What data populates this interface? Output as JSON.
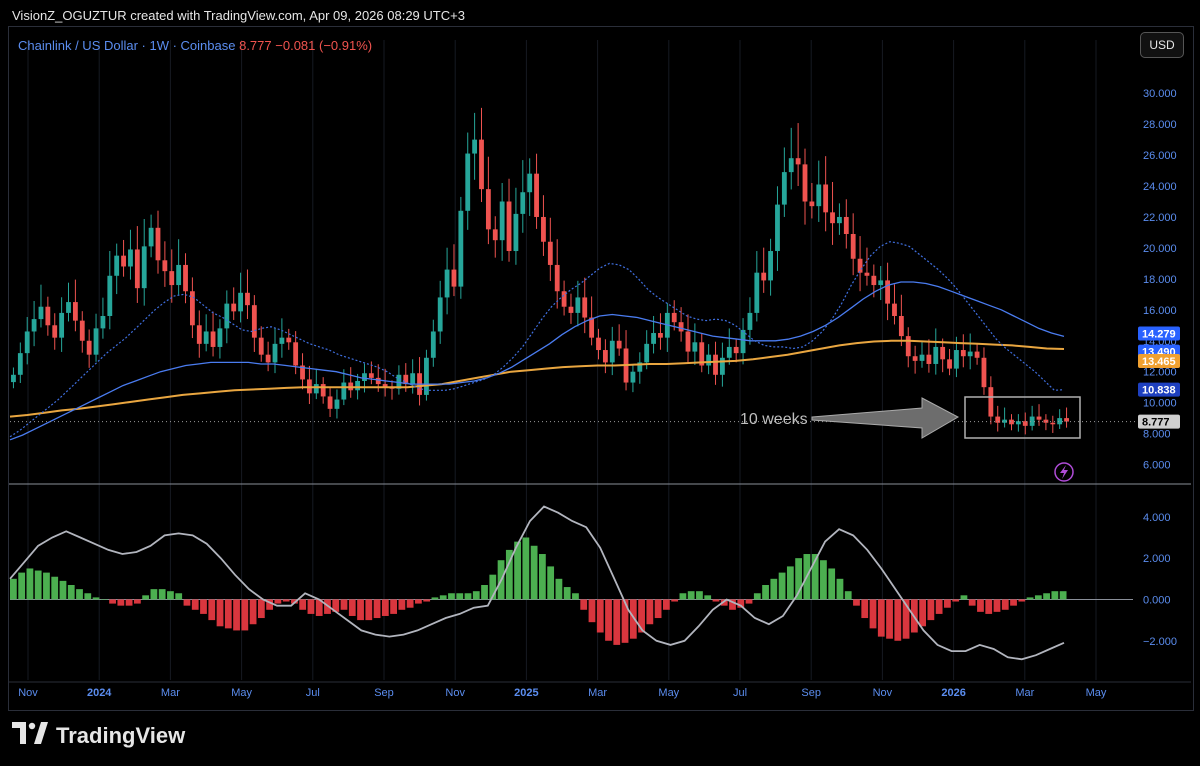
{
  "header": {
    "credit": "VisionZ_OGUZTUR created with TradingView.com, Apr 09, 2026 08:29 UTC+3"
  },
  "symbol": {
    "name": "Chainlink / US Dollar · 1W · Coinbase",
    "last": "8.777",
    "change": "−0.081 (−0.91%)"
  },
  "currency_button": "USD",
  "footer": {
    "brand": "TradingView",
    "logo_icon": "tradingview-logo-icon"
  },
  "colors": {
    "up": "#26a69a",
    "down": "#ef5350",
    "ma_fast": "#3f6fe0",
    "ma_mid": "#4a7cf0",
    "ma_slow": "#e9a640",
    "macd_line": "#b2b5be",
    "hist_pos": "#4caf50",
    "hist_neg": "#d9363e"
  },
  "chart_data": {
    "type": "candlestick",
    "price_axis": {
      "ticks": [
        "30.000",
        "28.000",
        "26.000",
        "24.000",
        "22.000",
        "20.000",
        "18.000",
        "16.000",
        "14.000",
        "12.000",
        "10.000",
        "8.000",
        "6.000"
      ],
      "range": [
        5,
        31.5
      ]
    },
    "time_axis": {
      "labels": [
        {
          "text": "Nov",
          "bold": false
        },
        {
          "text": "2024",
          "bold": true
        },
        {
          "text": "Mar",
          "bold": false
        },
        {
          "text": "May",
          "bold": false
        },
        {
          "text": "Jul",
          "bold": false
        },
        {
          "text": "Sep",
          "bold": false
        },
        {
          "text": "Nov",
          "bold": false
        },
        {
          "text": "2025",
          "bold": true
        },
        {
          "text": "Mar",
          "bold": false
        },
        {
          "text": "May",
          "bold": false
        },
        {
          "text": "Jul",
          "bold": false
        },
        {
          "text": "Sep",
          "bold": false
        },
        {
          "text": "Nov",
          "bold": false
        },
        {
          "text": "2026",
          "bold": true
        },
        {
          "text": "Mar",
          "bold": false
        },
        {
          "text": "May",
          "bold": false
        }
      ]
    },
    "price_labels": [
      {
        "value": "14.279",
        "price": 14.279,
        "bg": "#2962ff"
      },
      {
        "value": "13.490",
        "price": 13.49,
        "bg": "#2962ff"
      },
      {
        "value": "13.465",
        "price": 13.465,
        "bg": "#f0a030"
      },
      {
        "value": "10.838",
        "price": 10.838,
        "bg": "#1e40c0"
      },
      {
        "value": "8.777",
        "price": 8.777,
        "bg": "#cfcfcf"
      }
    ],
    "closes": [
      11.8,
      13.2,
      14.6,
      15.4,
      16.2,
      15.0,
      14.2,
      15.8,
      16.5,
      15.3,
      14.0,
      13.1,
      14.8,
      15.6,
      18.2,
      19.5,
      18.8,
      19.9,
      17.4,
      20.1,
      21.3,
      19.2,
      18.5,
      17.6,
      18.9,
      17.2,
      15.0,
      13.8,
      14.6,
      13.6,
      14.8,
      16.4,
      15.9,
      17.1,
      16.3,
      14.2,
      13.1,
      12.6,
      13.8,
      14.2,
      13.9,
      12.4,
      11.5,
      10.6,
      11.2,
      10.4,
      9.6,
      10.2,
      11.3,
      10.8,
      11.4,
      11.9,
      11.6,
      11.2,
      11.0,
      10.9,
      11.8,
      11.2,
      11.9,
      10.5,
      12.9,
      14.6,
      16.8,
      18.6,
      17.5,
      22.4,
      26.1,
      27.0,
      23.8,
      21.2,
      20.5,
      23.0,
      19.8,
      22.2,
      23.6,
      24.8,
      22.0,
      20.4,
      18.9,
      17.2,
      16.2,
      15.8,
      16.8,
      15.5,
      14.2,
      13.4,
      12.6,
      14.0,
      13.5,
      11.3,
      12.0,
      12.6,
      13.8,
      14.5,
      14.2,
      15.8,
      15.2,
      14.6,
      13.3,
      13.9,
      12.4,
      13.1,
      11.8,
      12.9,
      13.6,
      13.2,
      14.7,
      15.8,
      18.4,
      17.9,
      19.8,
      22.8,
      24.9,
      25.8,
      25.4,
      23.0,
      22.7,
      24.1,
      22.3,
      21.6,
      22.0,
      20.9,
      19.3,
      18.4,
      18.2,
      17.6,
      17.9,
      16.4,
      15.6,
      14.3,
      13.0,
      12.7,
      13.1,
      12.5,
      13.6,
      12.8,
      12.2,
      13.4,
      13.0,
      13.3,
      12.9,
      11.0,
      9.1,
      8.7,
      8.9,
      8.6,
      8.8,
      8.5,
      9.1,
      8.9,
      8.7,
      8.6,
      9.0,
      8.777
    ],
    "ma_fast": [
      7.8,
      8.2,
      8.7,
      9.2,
      9.7,
      10.2,
      10.8,
      11.4,
      12.0,
      12.6,
      13.2,
      13.7,
      14.2,
      14.8,
      15.4,
      16.0,
      16.5,
      16.9,
      17.0,
      16.8,
      16.3,
      15.8,
      15.5,
      15.1,
      14.7,
      14.6,
      14.8,
      14.9,
      14.7,
      14.4,
      14.1,
      13.8,
      13.6,
      13.4,
      13.1,
      12.9,
      12.7,
      12.5,
      12.3,
      12.0,
      11.6,
      11.3,
      11.0,
      10.8,
      10.8,
      10.8,
      10.9,
      11.1,
      11.3,
      11.5,
      11.8,
      12.3,
      12.9,
      13.6,
      14.5,
      15.4,
      16.2,
      16.8,
      17.3,
      17.7,
      18.2,
      18.7,
      19.0,
      18.9,
      18.6,
      18.0,
      17.3,
      16.8,
      16.4,
      16.0,
      15.6,
      15.4,
      15.3,
      15.4,
      15.3,
      15.0,
      14.5,
      14.0,
      13.7,
      13.6,
      13.6,
      13.5,
      13.6,
      14.0,
      14.6,
      15.4,
      16.4,
      17.6,
      18.6,
      19.5,
      20.1,
      20.4,
      20.3,
      20.1,
      19.6,
      19.1,
      18.6,
      18.0,
      17.3,
      16.5,
      15.7,
      14.9,
      14.1,
      13.5,
      13.0,
      12.5,
      12.0,
      11.4,
      10.8,
      10.838
    ],
    "ma_mid": [
      7.6,
      7.9,
      8.3,
      8.7,
      9.1,
      9.5,
      9.9,
      10.3,
      10.7,
      11.1,
      11.4,
      11.7,
      12.0,
      12.2,
      12.4,
      12.5,
      12.6,
      12.6,
      12.6,
      12.6,
      12.5,
      12.5,
      12.4,
      12.3,
      12.2,
      12.1,
      12.0,
      11.8,
      11.6,
      11.5,
      11.4,
      11.3,
      11.2,
      11.2,
      11.2,
      11.2,
      11.3,
      11.4,
      11.6,
      11.9,
      12.3,
      12.8,
      13.3,
      13.8,
      14.4,
      14.9,
      15.3,
      15.6,
      15.7,
      15.6,
      15.5,
      15.3,
      15.1,
      14.9,
      14.7,
      14.5,
      14.3,
      14.2,
      14.1,
      14.0,
      14.0,
      14.0,
      14.1,
      14.3,
      14.6,
      15.0,
      15.5,
      16.1,
      16.7,
      17.2,
      17.6,
      17.8,
      17.8,
      17.7,
      17.5,
      17.2,
      16.9,
      16.6,
      16.3,
      16.0,
      15.6,
      15.2,
      14.8,
      14.5,
      14.279
    ],
    "ma_slow": [
      9.1,
      9.2,
      9.35,
      9.5,
      9.6,
      9.75,
      9.9,
      10.05,
      10.2,
      10.35,
      10.5,
      10.6,
      10.7,
      10.8,
      10.85,
      10.9,
      10.95,
      11.0,
      11.0,
      11.0,
      11.0,
      11.0,
      11.0,
      11.0,
      11.1,
      11.2,
      11.4,
      11.6,
      11.8,
      12.0,
      12.1,
      12.2,
      12.3,
      12.35,
      12.4,
      12.4,
      12.45,
      12.5,
      12.5,
      12.55,
      12.6,
      12.65,
      12.7,
      12.8,
      12.95,
      13.1,
      13.3,
      13.5,
      13.7,
      13.85,
      13.95,
      14.0,
      14.0,
      13.95,
      13.9,
      13.85,
      13.8,
      13.75,
      13.7,
      13.6,
      13.5,
      13.465
    ],
    "annotation": {
      "text": "10 weeks"
    },
    "oscillator": {
      "ticks": [
        "4.000",
        "2.000",
        "0.000",
        "−2.000"
      ],
      "range": [
        -3.9,
        5.3
      ],
      "histogram": [
        1.0,
        1.3,
        1.5,
        1.4,
        1.3,
        1.1,
        0.9,
        0.7,
        0.5,
        0.3,
        0.1,
        0.0,
        -0.2,
        -0.3,
        -0.3,
        -0.2,
        0.2,
        0.5,
        0.5,
        0.4,
        0.3,
        -0.3,
        -0.5,
        -0.7,
        -1.0,
        -1.3,
        -1.4,
        -1.5,
        -1.5,
        -1.2,
        -0.9,
        -0.5,
        -0.2,
        -0.1,
        -0.2,
        -0.5,
        -0.7,
        -0.8,
        -0.7,
        -0.6,
        -0.5,
        -0.8,
        -1.0,
        -1.0,
        -0.9,
        -0.8,
        -0.7,
        -0.5,
        -0.4,
        -0.2,
        -0.1,
        0.1,
        0.2,
        0.3,
        0.3,
        0.3,
        0.4,
        0.7,
        1.2,
        1.9,
        2.4,
        2.8,
        3.0,
        2.6,
        2.2,
        1.6,
        1.0,
        0.6,
        0.3,
        -0.5,
        -1.1,
        -1.6,
        -2.0,
        -2.2,
        -2.1,
        -1.9,
        -1.6,
        -1.2,
        -0.9,
        -0.5,
        -0.1,
        0.3,
        0.4,
        0.4,
        0.2,
        -0.1,
        -0.3,
        -0.5,
        -0.4,
        -0.2,
        0.3,
        0.7,
        1.0,
        1.3,
        1.6,
        2.0,
        2.2,
        2.2,
        1.9,
        1.5,
        1.0,
        0.4,
        -0.3,
        -0.9,
        -1.4,
        -1.8,
        -1.9,
        -2.0,
        -1.9,
        -1.6,
        -1.3,
        -1.0,
        -0.7,
        -0.4,
        -0.1,
        0.2,
        -0.3,
        -0.6,
        -0.7,
        -0.6,
        -0.5,
        -0.3,
        -0.1,
        0.1,
        0.2,
        0.3,
        0.4,
        0.4
      ],
      "macd": [
        1.0,
        1.8,
        2.6,
        3.0,
        3.3,
        3.0,
        2.7,
        2.4,
        2.2,
        2.3,
        2.6,
        3.1,
        3.2,
        3.1,
        2.7,
        2.0,
        1.2,
        0.5,
        0.0,
        -0.3,
        -0.3,
        0.3,
        0.0,
        -0.5,
        -1.0,
        -1.5,
        -1.7,
        -1.8,
        -1.7,
        -1.5,
        -1.2,
        -0.9,
        -0.7,
        -0.4,
        -0.3,
        1.0,
        2.5,
        3.8,
        4.5,
        4.2,
        3.8,
        3.5,
        2.5,
        1.0,
        -0.5,
        -1.5,
        -2.0,
        -2.2,
        -2.0,
        -1.3,
        -0.5,
        0.0,
        -0.3,
        -0.9,
        -1.2,
        -0.8,
        0.2,
        1.5,
        2.8,
        3.4,
        3.1,
        2.4,
        1.5,
        0.5,
        -0.5,
        -1.5,
        -2.2,
        -2.5,
        -2.5,
        -2.2,
        -2.4,
        -2.8,
        -2.9,
        -2.7,
        -2.4,
        -2.1
      ]
    }
  }
}
